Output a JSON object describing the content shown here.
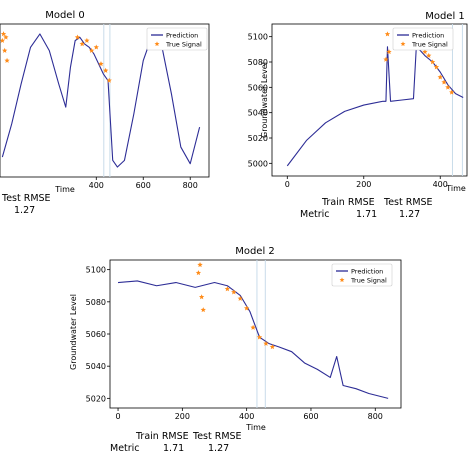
{
  "chart_data": [
    {
      "type": "line",
      "title": "Model 0",
      "xlabel": "Time",
      "ylabel": "",
      "xlim": [
        -10,
        880
      ],
      "ylim": [
        -1.15,
        1.15
      ],
      "xticks": [
        "400",
        "600",
        "800"
      ],
      "xtick_values": [
        400,
        600,
        800
      ],
      "vlines": [
        432,
        458
      ],
      "legend": [
        "Prediction",
        "True Signal"
      ],
      "legend_position": "upper-right",
      "metrics": {
        "header": "Test RMSE",
        "value": "1.27"
      },
      "series": [
        {
          "name": "Prediction",
          "color": "#2d2d96",
          "x": [
            0,
            40,
            80,
            120,
            160,
            200,
            240,
            270,
            290,
            310,
            330,
            350,
            370,
            390,
            410,
            430,
            450,
            470,
            490,
            520,
            560,
            600,
            640,
            680,
            720,
            760,
            800,
            840
          ],
          "y": [
            -0.85,
            -0.35,
            0.25,
            0.8,
            1.0,
            0.75,
            0.25,
            -0.1,
            0.5,
            0.9,
            0.95,
            0.85,
            0.8,
            0.7,
            0.55,
            0.4,
            0.3,
            -0.9,
            -1.0,
            -0.9,
            -0.2,
            0.6,
            1.0,
            0.8,
            0.1,
            -0.7,
            -0.95,
            -0.4
          ]
        },
        {
          "name": "True Signal",
          "color": "#ff8c1a",
          "x": [
            0,
            5,
            10,
            15,
            20,
            320,
            340,
            360,
            380,
            400,
            420,
            440,
            455
          ],
          "y": [
            0.9,
            1.0,
            0.75,
            0.95,
            0.6,
            0.95,
            0.85,
            0.9,
            0.75,
            0.8,
            0.55,
            0.45,
            0.3
          ]
        }
      ]
    },
    {
      "type": "line",
      "title": "Model 1",
      "xlabel": "Time",
      "ylabel": "Groundwater Level",
      "xlim": [
        -40,
        470
      ],
      "ylim": [
        4990,
        5110
      ],
      "xticks": [
        "0",
        "200",
        "400"
      ],
      "xtick_values": [
        0,
        200,
        400
      ],
      "yticks": [
        "5000",
        "5020",
        "5040",
        "5060",
        "5080",
        "5100"
      ],
      "ytick_values": [
        5000,
        5020,
        5040,
        5060,
        5080,
        5100
      ],
      "vlines": [
        432,
        458
      ],
      "legend": [
        "Prediction",
        "True Signal"
      ],
      "legend_position": "upper-right",
      "metrics": {
        "headers": [
          "Train RMSE",
          "Test RMSE"
        ],
        "row_label": "Metric",
        "values": [
          "1.71",
          "1.27"
        ]
      },
      "series": [
        {
          "name": "Prediction",
          "color": "#2d2d96",
          "x": [
            0,
            50,
            100,
            150,
            200,
            250,
            258,
            262,
            270,
            300,
            330,
            338,
            345,
            360,
            380,
            400,
            420,
            440,
            460
          ],
          "y": [
            4998,
            5018,
            5032,
            5041,
            5046,
            5049,
            5049,
            5092,
            5049,
            5050,
            5051,
            5095,
            5090,
            5085,
            5080,
            5072,
            5062,
            5055,
            5052
          ]
        },
        {
          "name": "True Signal",
          "color": "#ff8c1a",
          "x": [
            258,
            262,
            266,
            340,
            350,
            360,
            370,
            380,
            390,
            400,
            410,
            420,
            430
          ],
          "y": [
            5082,
            5102,
            5088,
            5092,
            5095,
            5088,
            5085,
            5080,
            5076,
            5068,
            5064,
            5060,
            5056
          ]
        }
      ]
    },
    {
      "type": "line",
      "title": "Model 2",
      "xlabel": "Time",
      "ylabel": "Groundwater Level",
      "xlim": [
        -25,
        880
      ],
      "ylim": [
        5014,
        5106
      ],
      "xticks": [
        "0",
        "200",
        "400",
        "600",
        "800"
      ],
      "xtick_values": [
        0,
        200,
        400,
        600,
        800
      ],
      "yticks": [
        "5020",
        "5040",
        "5060",
        "5080",
        "5100"
      ],
      "ytick_values": [
        5020,
        5040,
        5060,
        5080,
        5100
      ],
      "vlines": [
        432,
        458
      ],
      "legend": [
        "Prediction",
        "True Signal"
      ],
      "legend_position": "upper-right",
      "metrics": {
        "headers": [
          "Train RMSE",
          "Test RMSE"
        ],
        "row_label": "Metric",
        "values": [
          "1.71",
          "1.27"
        ]
      },
      "series": [
        {
          "name": "Prediction",
          "color": "#2d2d96",
          "x": [
            0,
            60,
            120,
            180,
            240,
            300,
            340,
            380,
            410,
            440,
            470,
            500,
            540,
            580,
            620,
            660,
            680,
            700,
            740,
            780,
            820,
            840
          ],
          "y": [
            5092,
            5093,
            5090,
            5092,
            5089,
            5092,
            5090,
            5084,
            5074,
            5058,
            5054,
            5052,
            5049,
            5042,
            5038,
            5033,
            5046,
            5028,
            5026,
            5023,
            5021,
            5020
          ]
        },
        {
          "name": "True Signal",
          "color": "#ff8c1a",
          "x": [
            250,
            255,
            260,
            265,
            340,
            360,
            380,
            400,
            420,
            440,
            460,
            480
          ],
          "y": [
            5098,
            5103,
            5083,
            5075,
            5088,
            5086,
            5082,
            5076,
            5064,
            5058,
            5054,
            5052
          ]
        }
      ]
    }
  ]
}
